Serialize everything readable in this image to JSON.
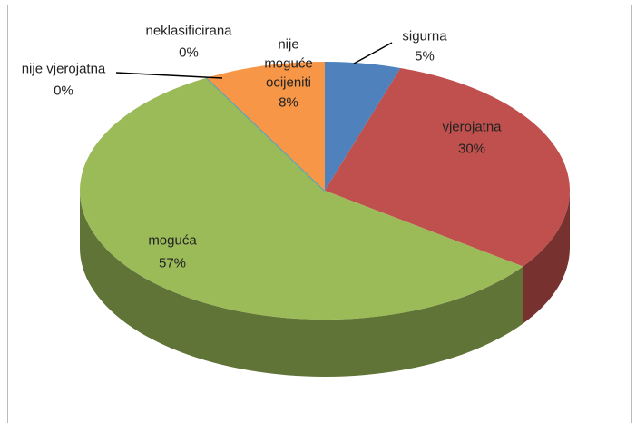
{
  "chart_data": {
    "type": "pie3d",
    "categories": [
      "sigurna",
      "vjerojatna",
      "moguća",
      "nije vjerojatna",
      "neklasificirana",
      "nije moguće ocijeniti"
    ],
    "values": [
      5,
      30,
      57,
      0,
      0,
      8
    ],
    "value_labels": [
      "5%",
      "30%",
      "57%",
      "0%",
      "0%",
      "8%"
    ],
    "colors": [
      "#4f81bd",
      "#c0504d",
      "#9bbb59",
      "#8064a2",
      "#4bacc6",
      "#f79646"
    ]
  }
}
